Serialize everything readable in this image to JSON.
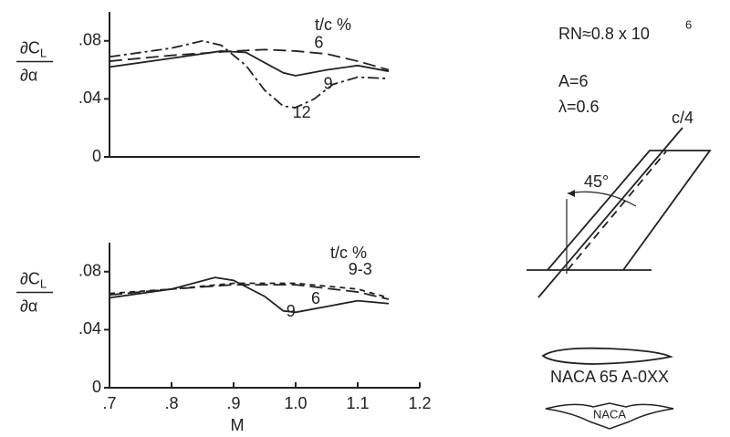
{
  "chart_data": [
    {
      "type": "line",
      "legend_title": "t/c %",
      "ylabel": [
        "∂C",
        "L",
        "∂α"
      ],
      "xlim": [
        0.7,
        1.2
      ],
      "ylim": [
        0,
        0.1
      ],
      "yticks": [
        0,
        {
          "value": 0.04,
          "label": ".04"
        },
        {
          "value": 0.08,
          "label": ".08"
        }
      ],
      "series": [
        {
          "name": "6",
          "color": "#222222",
          "dash": "long-dash",
          "x": [
            0.7,
            0.8,
            0.9,
            0.95,
            1.0,
            1.05,
            1.1,
            1.15
          ],
          "values": [
            0.066,
            0.07,
            0.073,
            0.074,
            0.073,
            0.071,
            0.066,
            0.06
          ]
        },
        {
          "name": "9",
          "color": "#222222",
          "dash": "solid",
          "x": [
            0.7,
            0.8,
            0.88,
            0.92,
            0.95,
            0.98,
            1.0,
            1.05,
            1.1,
            1.15
          ],
          "values": [
            0.062,
            0.068,
            0.073,
            0.072,
            0.065,
            0.058,
            0.056,
            0.06,
            0.063,
            0.059
          ]
        },
        {
          "name": "12",
          "color": "#222222",
          "dash": "dash-dot",
          "x": [
            0.7,
            0.8,
            0.85,
            0.88,
            0.92,
            0.95,
            0.98,
            1.0,
            1.03,
            1.06,
            1.1,
            1.15
          ],
          "values": [
            0.069,
            0.075,
            0.08,
            0.077,
            0.063,
            0.046,
            0.035,
            0.034,
            0.04,
            0.05,
            0.055,
            0.054
          ]
        }
      ]
    },
    {
      "type": "line",
      "legend_title": "t/c %",
      "ylabel": [
        "∂C",
        "L",
        "∂α"
      ],
      "xlabel": "M",
      "xlim": [
        0.7,
        1.2
      ],
      "ylim": [
        0,
        0.1
      ],
      "xticks": [
        {
          "value": 0.7,
          "label": ".7"
        },
        {
          "value": 0.8,
          "label": ".8"
        },
        {
          "value": 0.9,
          "label": ".9"
        },
        {
          "value": 1.0,
          "label": "1.0"
        },
        1.1,
        1.2
      ],
      "yticks": [
        0,
        {
          "value": 0.04,
          "label": ".04"
        },
        {
          "value": 0.08,
          "label": ".08"
        }
      ],
      "series": [
        {
          "name": "9-3",
          "color": "#222222",
          "dash": "dash",
          "x": [
            0.7,
            0.8,
            0.9,
            1.0,
            1.1,
            1.15
          ],
          "values": [
            0.065,
            0.068,
            0.072,
            0.072,
            0.068,
            0.062
          ]
        },
        {
          "name": "6",
          "color": "#222222",
          "dash": "long-dash",
          "x": [
            0.7,
            0.8,
            0.9,
            1.0,
            1.1,
            1.15
          ],
          "values": [
            0.064,
            0.068,
            0.071,
            0.071,
            0.066,
            0.061
          ]
        },
        {
          "name": "9",
          "color": "#222222",
          "dash": "solid",
          "x": [
            0.7,
            0.8,
            0.87,
            0.9,
            0.95,
            0.98,
            1.0,
            1.05,
            1.1,
            1.15
          ],
          "values": [
            0.062,
            0.068,
            0.076,
            0.074,
            0.063,
            0.053,
            0.052,
            0.056,
            0.06,
            0.058
          ]
        }
      ]
    }
  ],
  "notes": {
    "reynolds": "RN≈0.8 x 10",
    "reynolds_exponent": "6",
    "aspect_ratio": "A=6",
    "taper_ratio": "λ=0.6",
    "quarter_chord": "c/4",
    "sweep": "45°",
    "airfoil": "NACA 65 A-0XX",
    "logo": "NACA"
  }
}
